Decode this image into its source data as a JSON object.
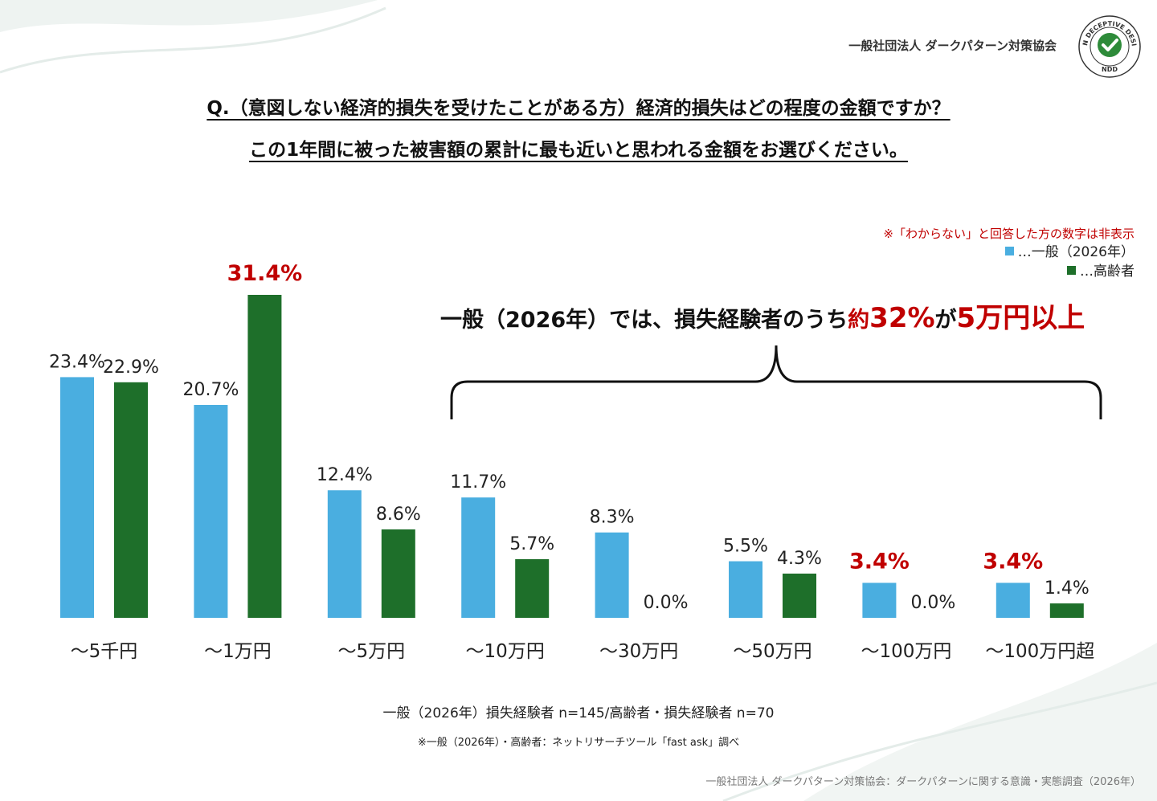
{
  "header": {
    "org_name": "一般社団法人 ダークパターン対策協会",
    "logo_ring_text": "NON DECEPTIVE DESIGN",
    "logo_bottom_text": "NDD",
    "logo_icon": "checkmark-icon"
  },
  "question": {
    "line1": "Q.（意図しない経済的損失を受けたことがある方）経済的損失はどの程度の金額ですか？",
    "line2": "この1年間に被った被害額の累計に最も近いと思われる金額をお選びください。"
  },
  "note_hidden": "※「わからない」と回答した方の数字は非表示",
  "legend": {
    "general": "…一般（2026年）",
    "elderly": "…高齢者"
  },
  "highlight": {
    "prefix": "一般（2026年）では、損失経験者のうち",
    "red1": "約",
    "red_big": "32%",
    "mid": "が",
    "red2": "5万円以上"
  },
  "colors": {
    "general": "#4aaee0",
    "elderly": "#1e6f2a",
    "emphasis": "#c00000"
  },
  "chart_data": {
    "type": "bar",
    "categories": [
      "～5千円",
      "～1万円",
      "～5万円",
      "～10万円",
      "～30万円",
      "～50万円",
      "～100万円",
      "～100万円超"
    ],
    "series": [
      {
        "name": "一般（2026年）",
        "values": [
          23.4,
          20.7,
          12.4,
          11.7,
          8.3,
          5.5,
          3.4,
          3.4
        ],
        "labels": [
          "23.4%",
          "20.7%",
          "12.4%",
          "11.7%",
          "8.3%",
          "5.5%",
          "3.4%",
          "3.4%"
        ],
        "highlighted": [
          false,
          false,
          false,
          false,
          false,
          false,
          true,
          true
        ]
      },
      {
        "name": "高齢者",
        "values": [
          22.9,
          31.4,
          8.6,
          5.7,
          0.0,
          4.3,
          0.0,
          1.4
        ],
        "labels": [
          "22.9%",
          "31.4%",
          "8.6%",
          "5.7%",
          "0.0%",
          "4.3%",
          "0.0%",
          "1.4%"
        ],
        "highlighted": [
          false,
          true,
          false,
          false,
          false,
          false,
          false,
          false
        ]
      }
    ],
    "ylim": [
      0,
      31.4
    ],
    "grid": false,
    "legend": "top-right"
  },
  "footer": {
    "sample": "一般（2026年）損失経験者 n=145/高齢者・損失経験者 n=70",
    "source": "※一般（2026年）・高齢者：ネットリサーチツール「fast ask」調べ",
    "credit": "一般社団法人 ダークパターン対策協会：ダークパターンに関する意識・実態調査（2026年）"
  }
}
